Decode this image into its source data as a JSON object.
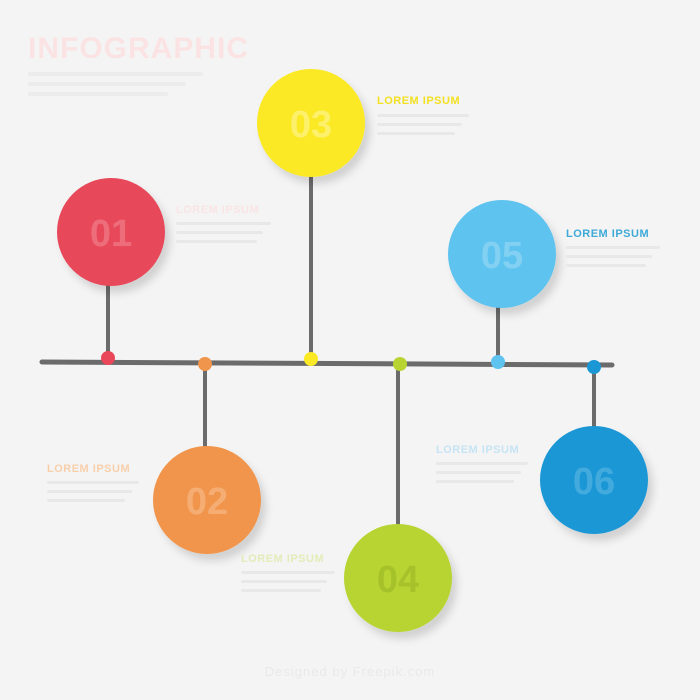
{
  "header": {
    "title": "INFOGRAPHIC"
  },
  "colors": {
    "line": "#6b6b6b",
    "step1": "#e8485a",
    "step2": "#f0954c",
    "step3": "#fbe925",
    "step4": "#b8d433",
    "step5": "#5fc3ef",
    "step6": "#1b97d6"
  },
  "steps": [
    {
      "number": "01",
      "label": "LOREM IPSUM",
      "color": "#e8485a",
      "label_color": "#fae4e5"
    },
    {
      "number": "02",
      "label": "LOREM IPSUM",
      "color": "#f0954c",
      "label_color": "#f8cfaa"
    },
    {
      "number": "03",
      "label": "LOREM IPSUM",
      "color": "#fbe925",
      "label_color": "#f2e021"
    },
    {
      "number": "04",
      "label": "LOREM IPSUM",
      "color": "#b8d433",
      "label_color": "#e2ecb8"
    },
    {
      "number": "05",
      "label": "LOREM IPSUM",
      "color": "#5fc3ef",
      "label_color": "#3fa9d8"
    },
    {
      "number": "06",
      "label": "LOREM IPSUM",
      "color": "#1b97d6",
      "label_color": "#c6e4f4"
    }
  ],
  "footer": {
    "credit": "Designed by Freepik.com"
  }
}
